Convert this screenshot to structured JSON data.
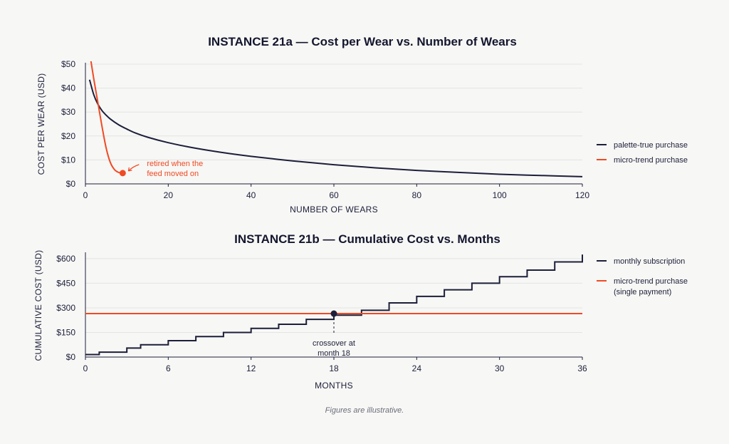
{
  "colors": {
    "navy": "#1c1f3a",
    "orange": "#f04a23",
    "grid": "#e4e4e4",
    "background": "#f7f7f5"
  },
  "caption": "Figures are illustrative.",
  "chart_data": [
    {
      "type": "line",
      "title": "INSTANCE 21a — Cost per Wear vs. Number of Wears",
      "xlabel": "NUMBER OF WEARS",
      "ylabel": "COST PER WEAR (USD)",
      "xlim": [
        0,
        120
      ],
      "ylim": [
        0,
        50
      ],
      "xticks": [
        0,
        20,
        40,
        60,
        80,
        100,
        120
      ],
      "xtick_labels": [
        "0",
        "20",
        "40",
        "60",
        "80",
        "100",
        "120"
      ],
      "yticks": [
        0,
        10,
        20,
        30,
        40,
        50
      ],
      "ytick_labels": [
        "$0",
        "$10",
        "$20",
        "$30",
        "$40",
        "$50"
      ],
      "grid": true,
      "legend_position": "right",
      "series": [
        {
          "name": "palette-true purchase",
          "color": "#1c1f3a",
          "x": [
            1,
            2,
            3,
            4,
            5,
            6,
            8,
            10,
            12,
            15,
            20,
            25,
            30,
            35,
            40,
            50,
            60,
            70,
            80,
            90,
            100,
            110,
            120
          ],
          "y": [
            43.5,
            37.3,
            33.3,
            30.6,
            28.7,
            27.1,
            24.7,
            22.9,
            21.3,
            19.5,
            17.2,
            15.4,
            13.9,
            12.6,
            11.5,
            9.6,
            8.0,
            6.7,
            5.6,
            4.8,
            4.0,
            3.5,
            3.0
          ]
        },
        {
          "name": "micro-trend purchase",
          "color": "#f04a23",
          "x": [
            1,
            2,
            3,
            4,
            5,
            6,
            7,
            8,
            9
          ],
          "y": [
            55,
            44,
            34,
            24,
            15,
            9,
            6,
            4.8,
            4.5
          ]
        }
      ],
      "annotations": [
        {
          "text": [
            "retired when the",
            "feed moved on"
          ],
          "x": 9,
          "y": 4.5,
          "color": "#f04a23"
        }
      ]
    },
    {
      "type": "line",
      "title": "INSTANCE 21b — Cumulative Cost vs. Months",
      "xlabel": "MONTHS",
      "ylabel": "CUMULATIVE COST (USD)",
      "xlim": [
        0,
        36
      ],
      "ylim": [
        0,
        630
      ],
      "xticks": [
        0,
        6,
        12,
        18,
        24,
        30,
        36
      ],
      "xtick_labels": [
        "0",
        "6",
        "12",
        "18",
        "24",
        "30",
        "36"
      ],
      "yticks": [
        0,
        150,
        300,
        450,
        600
      ],
      "ytick_labels": [
        "$0",
        "$150",
        "$300",
        "$450",
        "$600"
      ],
      "grid": true,
      "legend_position": "right",
      "series": [
        {
          "name": "monthly subscription",
          "color": "#1c1f3a",
          "step": true,
          "x": [
            0,
            1,
            3,
            4,
            6,
            8,
            10,
            12,
            14,
            16,
            18,
            20,
            22,
            24,
            26,
            28,
            30,
            32,
            34,
            36
          ],
          "y": [
            15,
            30,
            55,
            75,
            100,
            125,
            150,
            175,
            200,
            230,
            255,
            285,
            330,
            370,
            410,
            450,
            490,
            530,
            580,
            625
          ]
        },
        {
          "name": [
            "micro-trend purchase",
            "(single payment)"
          ],
          "color": "#f04a23",
          "x": [
            0,
            36
          ],
          "y": [
            265,
            265
          ]
        }
      ],
      "annotations": [
        {
          "text": [
            "crossover at",
            "month 18"
          ],
          "x": 18,
          "y": 265,
          "color": "#1c1f3a"
        }
      ]
    }
  ]
}
